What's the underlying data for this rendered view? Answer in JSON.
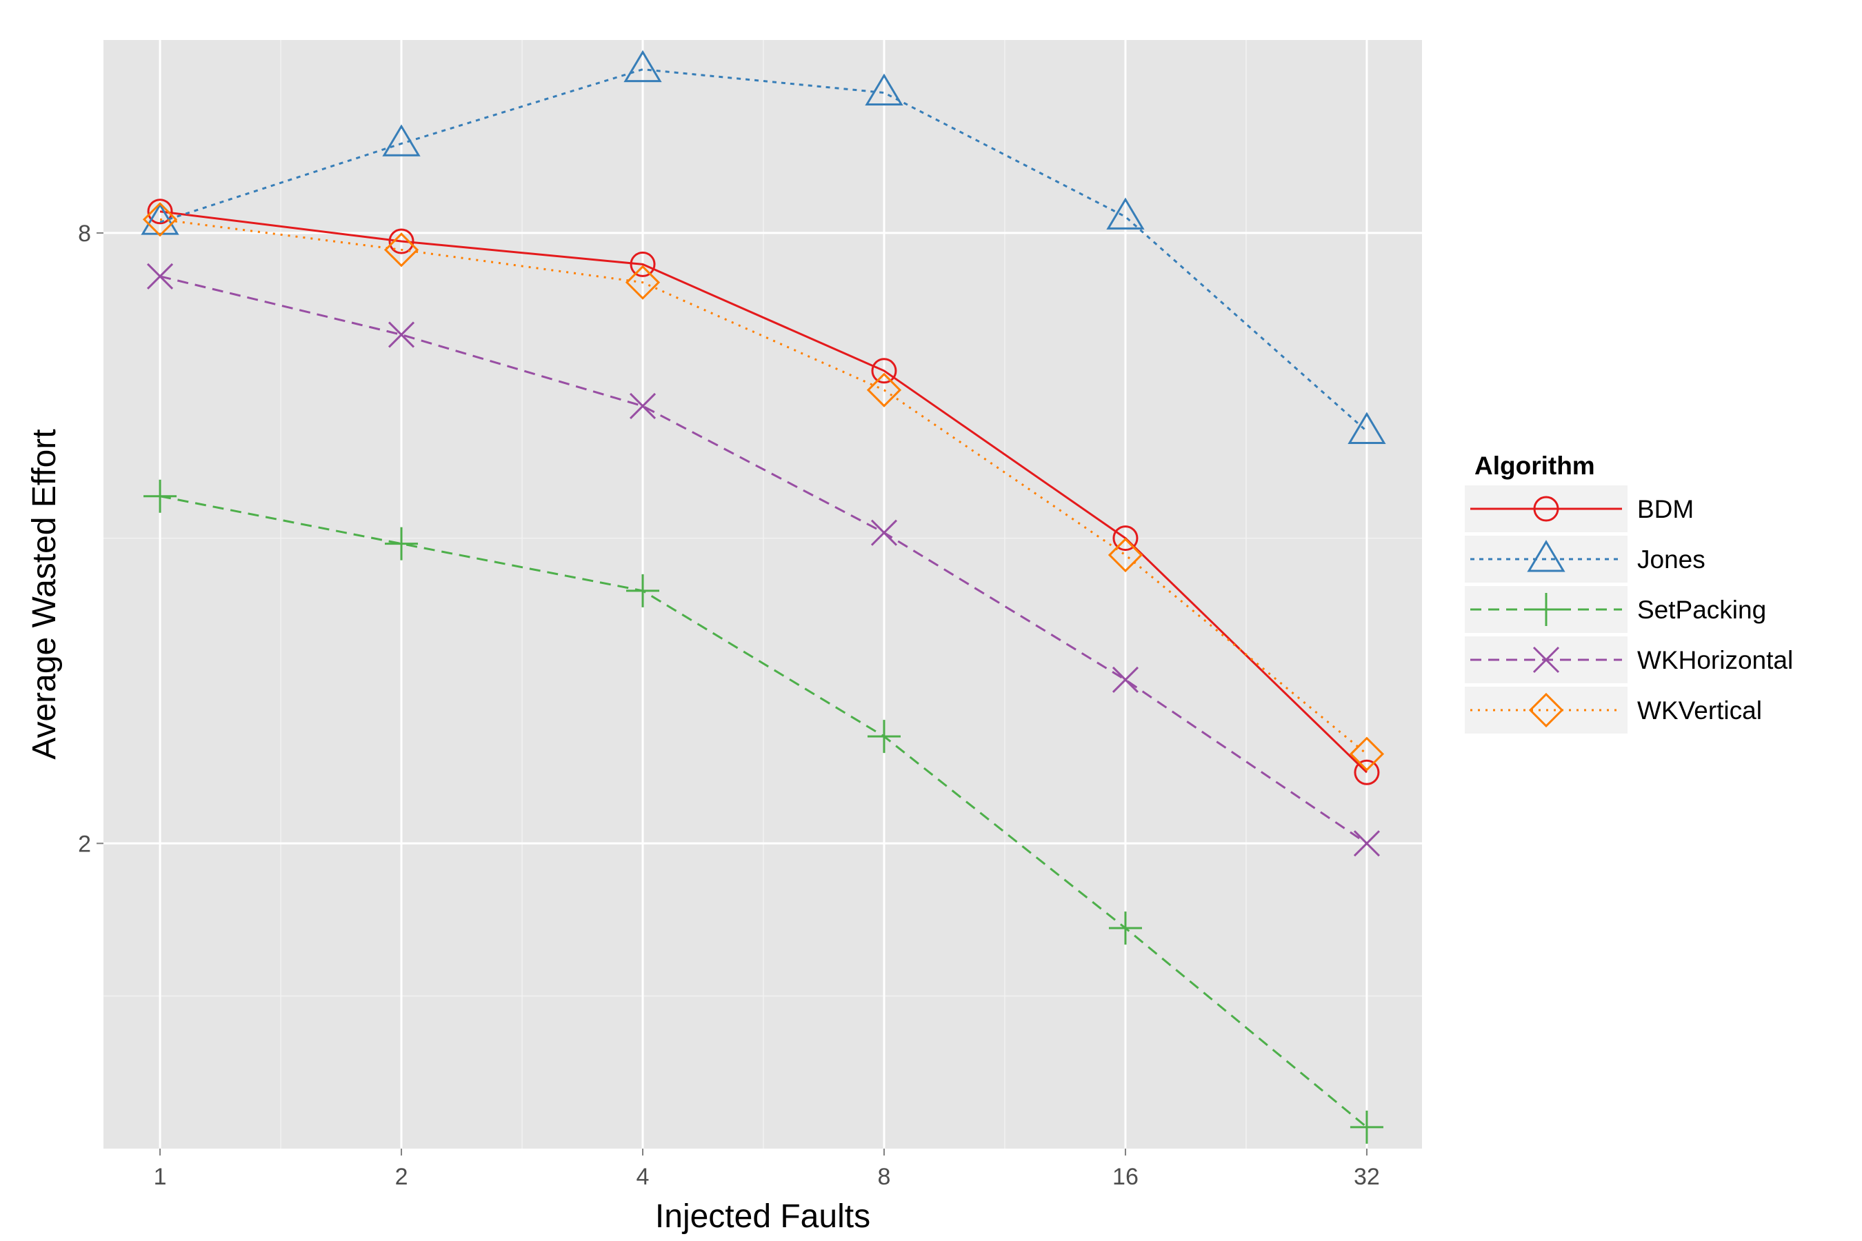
{
  "chart_data": {
    "type": "line",
    "xlabel": "Injected Faults",
    "ylabel": "Average Wasted Effort",
    "x_scale": "log2",
    "y_scale": "log2",
    "x": [
      1,
      2,
      4,
      8,
      16,
      32
    ],
    "x_tick_labels": [
      "1",
      "2",
      "4",
      "8",
      "16",
      "32"
    ],
    "y_ticks": [
      2,
      8
    ],
    "y_tick_labels": [
      "2",
      "8"
    ],
    "xlim": [
      0.85,
      37.5
    ],
    "ylim": [
      1.0,
      12.4
    ],
    "grid": true,
    "background": "#e5e5e5",
    "legend": {
      "title": "Algorithm",
      "position": "right"
    },
    "series": [
      {
        "name": "BDM",
        "color": "#e41a1c",
        "dash": "solid",
        "marker": "circle",
        "values": [
          8.4,
          7.85,
          7.45,
          5.85,
          4.0,
          2.35
        ]
      },
      {
        "name": "Jones",
        "color": "#377eb8",
        "dash": "short",
        "marker": "triangle",
        "values": [
          8.2,
          9.8,
          11.6,
          11.0,
          8.3,
          5.1
        ]
      },
      {
        "name": "SetPacking",
        "color": "#4daf4a",
        "dash": "long",
        "marker": "plus",
        "values": [
          4.4,
          3.95,
          3.55,
          2.55,
          1.65,
          1.05
        ]
      },
      {
        "name": "WKHorizontal",
        "color": "#984ea3",
        "dash": "long",
        "marker": "cross",
        "values": [
          7.25,
          6.35,
          5.4,
          4.05,
          2.9,
          2.0
        ]
      },
      {
        "name": "WKVertical",
        "color": "#ff7f00",
        "dash": "dot",
        "marker": "diamond",
        "values": [
          8.25,
          7.7,
          7.15,
          5.6,
          3.85,
          2.45
        ]
      }
    ]
  }
}
